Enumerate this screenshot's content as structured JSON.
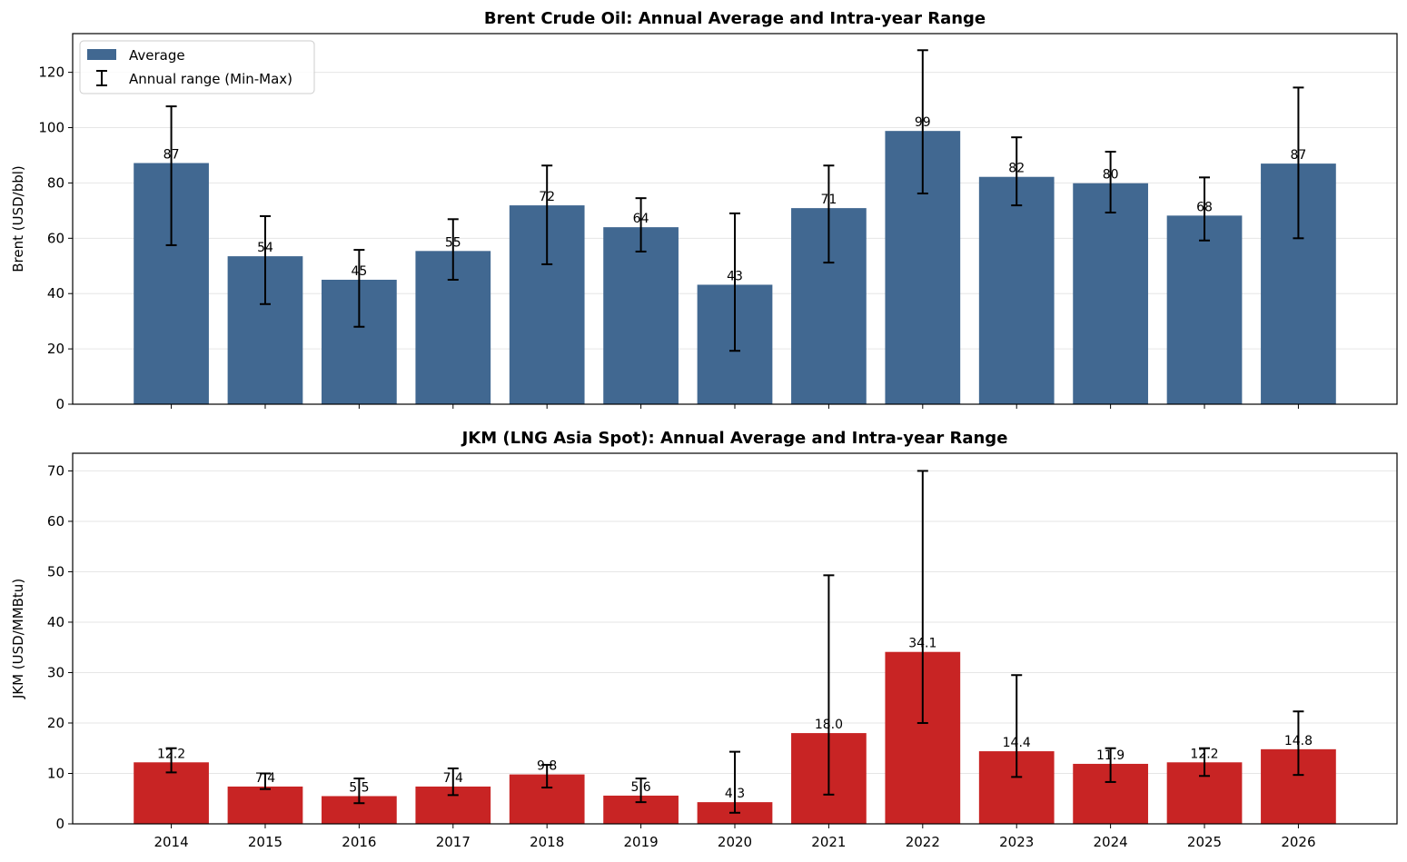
{
  "chart_data": [
    {
      "type": "bar",
      "title": "Brent Crude Oil: Annual Average and Intra-year Range",
      "xlabel": "",
      "ylabel": "Brent (USD/bbl)",
      "ylim": [
        0,
        134
      ],
      "yticks": [
        0,
        20,
        40,
        60,
        80,
        100,
        120
      ],
      "grid": "y",
      "legend_placement": "top-left",
      "bar_color": "#416891",
      "categories": [
        "2014",
        "2015",
        "2016",
        "2017",
        "2018",
        "2019",
        "2020",
        "2021",
        "2022",
        "2023",
        "2024",
        "2025",
        "2026"
      ],
      "series": [
        {
          "name": "Average",
          "values": [
            87.2,
            53.5,
            45,
            55.4,
            71.9,
            64,
            43.2,
            70.9,
            98.8,
            82.2,
            79.9,
            68.2,
            87
          ]
        }
      ],
      "range_min": [
        57.5,
        36.2,
        28,
        45,
        50.6,
        55.2,
        19.3,
        51.2,
        76.2,
        71.9,
        69.3,
        59.2,
        60
      ],
      "range_max": [
        107.7,
        68,
        55.8,
        66.9,
        86.3,
        74.5,
        69,
        86.3,
        128,
        96.5,
        91.3,
        82,
        114.5
      ],
      "range_name": "Annual range (Min-Max)",
      "data_labels": [
        "87",
        "54",
        "45",
        "55",
        "72",
        "64",
        "43",
        "71",
        "99",
        "82",
        "80",
        "68",
        "87"
      ]
    },
    {
      "type": "bar",
      "title": "JKM (LNG Asia Spot): Annual Average and Intra-year Range",
      "xlabel": "",
      "ylabel": "JKM (USD/MMBtu)",
      "ylim": [
        0,
        73.5
      ],
      "yticks": [
        0,
        10,
        20,
        30,
        40,
        50,
        60,
        70
      ],
      "grid": "y",
      "bar_color": "#c82424",
      "categories": [
        "2014",
        "2015",
        "2016",
        "2017",
        "2018",
        "2019",
        "2020",
        "2021",
        "2022",
        "2023",
        "2024",
        "2025",
        "2026"
      ],
      "series": [
        {
          "name": "",
          "values": [
            12.2,
            7.4,
            5.5,
            7.4,
            9.8,
            5.6,
            4.3,
            18,
            34.1,
            14.4,
            11.9,
            12.2,
            14.8
          ]
        }
      ],
      "range_min": [
        10.2,
        6.9,
        4.1,
        5.7,
        7.2,
        4.3,
        2.2,
        5.8,
        20,
        9.3,
        8.3,
        9.5,
        9.7
      ],
      "range_max": [
        15,
        10,
        9,
        11,
        11.7,
        9,
        14.3,
        49.3,
        70,
        29.5,
        15,
        15,
        22.3
      ],
      "data_labels": [
        "12.2",
        "7.4",
        "5.5",
        "7.4",
        "9.8",
        "5.6",
        "4.3",
        "18.0",
        "34.1",
        "14.4",
        "11.9",
        "12.2",
        "14.8"
      ]
    }
  ]
}
